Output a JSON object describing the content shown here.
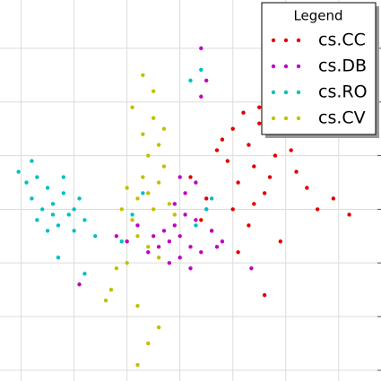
{
  "chart_data": {
    "type": "scatter",
    "legend_title": "Legend",
    "legend_loc": "upper right",
    "grid": true,
    "xlim": [
      -0.4,
      6.8
    ],
    "ylim": [
      -0.2,
      6.9
    ],
    "xticks": [
      0,
      1,
      2,
      3,
      4,
      5,
      6
    ],
    "yticks": [
      0,
      1,
      2,
      3,
      4,
      5,
      6
    ],
    "series": [
      {
        "name": "cs.CC",
        "color": "#e00000",
        "x": [
          3.2,
          3.5,
          3.7,
          3.9,
          4.0,
          4.1,
          4.2,
          4.3,
          4.4,
          4.5,
          4.6,
          4.8,
          5.0,
          5.2,
          5.4,
          5.6,
          5.9,
          6.2,
          3.6,
          3.8,
          4.0,
          4.3,
          4.5,
          4.7,
          4.9,
          4.1,
          4.4,
          3.4,
          5.1,
          4.6
        ],
        "values": [
          3.6,
          3.2,
          4.1,
          3.9,
          4.5,
          3.5,
          4.8,
          4.2,
          3.8,
          4.6,
          3.3,
          4.0,
          4.4,
          3.7,
          3.4,
          3.0,
          3.2,
          2.9,
          2.6,
          4.3,
          3.0,
          2.7,
          4.9,
          3.6,
          2.4,
          2.2,
          3.1,
          2.8,
          4.1,
          1.4
        ]
      },
      {
        "name": "cs.DB",
        "color": "#c000c0",
        "x": [
          2.9,
          3.0,
          3.1,
          3.2,
          2.8,
          2.7,
          3.3,
          3.4,
          3.5,
          2.6,
          2.5,
          3.0,
          3.1,
          2.9,
          3.6,
          3.8,
          2.4,
          2.2,
          2.0,
          3.2,
          3.3,
          2.8,
          3.0,
          3.7,
          3.4,
          1.8,
          3.4,
          4.35,
          1.1,
          3.5
        ],
        "values": [
          2.7,
          2.5,
          2.9,
          2.3,
          2.4,
          2.6,
          2.8,
          2.2,
          3.0,
          2.3,
          2.5,
          2.1,
          3.3,
          3.1,
          2.6,
          2.4,
          2.2,
          2.7,
          2.4,
          1.9,
          3.5,
          2.0,
          3.6,
          2.3,
          5.1,
          2.5,
          6.0,
          1.9,
          1.6,
          5.4
        ]
      },
      {
        "name": "cs.RO",
        "color": "#00c0c0",
        "x": [
          -0.05,
          0.1,
          0.2,
          0.3,
          0.4,
          0.5,
          0.6,
          0.7,
          0.8,
          0.9,
          1.0,
          1.1,
          1.2,
          1.4,
          0.3,
          0.5,
          0.2,
          0.8,
          1.0,
          0.6,
          1.2,
          1.9,
          2.1,
          2.3,
          3.2,
          3.4,
          3.5,
          3.3,
          3.6,
          0.7
        ],
        "values": [
          3.7,
          3.5,
          3.2,
          3.6,
          3.0,
          3.4,
          3.1,
          2.7,
          3.3,
          2.9,
          2.6,
          3.2,
          2.8,
          2.5,
          2.8,
          2.6,
          3.9,
          3.6,
          3.0,
          2.9,
          1.8,
          2.4,
          2.9,
          3.3,
          5.4,
          5.6,
          3.0,
          2.7,
          3.2,
          2.1
        ]
      },
      {
        "name": "cs.CV",
        "color": "#c0c000",
        "x": [
          2.4,
          2.3,
          2.5,
          2.6,
          2.2,
          2.1,
          2.7,
          2.8,
          2.0,
          2.4,
          2.3,
          2.5,
          2.6,
          2.2,
          1.9,
          2.9,
          2.4,
          2.5,
          2.3,
          2.1,
          2.6,
          1.7,
          1.6,
          1.8,
          2.2,
          2.6,
          2.4,
          2.2,
          2.7,
          2.0
        ],
        "values": [
          3.3,
          3.6,
          3.0,
          3.5,
          3.2,
          2.8,
          3.8,
          3.1,
          3.4,
          4.0,
          4.4,
          4.7,
          4.2,
          2.5,
          3.0,
          2.9,
          2.3,
          5.2,
          5.5,
          4.9,
          2.1,
          1.5,
          1.3,
          1.9,
          1.2,
          0.8,
          0.5,
          0.1,
          4.5,
          2.0
        ]
      }
    ]
  }
}
